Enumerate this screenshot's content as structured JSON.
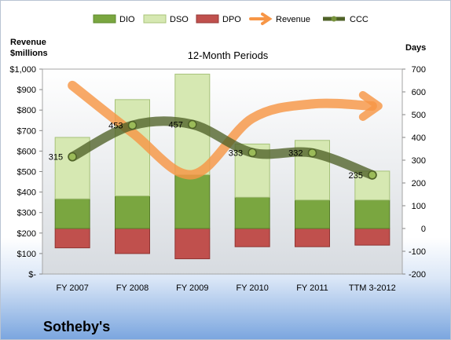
{
  "chart_data": {
    "type": "bar",
    "subtitle": "12-Month Periods",
    "company": "Sotheby's",
    "categories": [
      "FY 2007",
      "FY 2008",
      "FY 2009",
      "FY 2010",
      "FY 2011",
      "TTM 3-2012"
    ],
    "left_axis": {
      "label_line1": "Revenue",
      "label_line2": "$millions",
      "ylim": [
        0,
        1000
      ],
      "ticks": [
        "$-",
        "$100",
        "$200",
        "$300",
        "$400",
        "$500",
        "$600",
        "$700",
        "$800",
        "$900",
        "$1,000"
      ]
    },
    "right_axis": {
      "label": "Days",
      "ylim": [
        -200,
        700
      ],
      "ticks": [
        "-200",
        "-100",
        "0",
        "100",
        "200",
        "300",
        "400",
        "500",
        "600",
        "700"
      ]
    },
    "series": [
      {
        "name": "DIO",
        "color": "#7aa640",
        "values": [
          130,
          143,
          236,
          137,
          125,
          125
        ]
      },
      {
        "name": "DSO",
        "color": "#d6e8b2",
        "values": [
          270,
          423,
          442,
          234,
          262,
          127
        ]
      },
      {
        "name": "DPO",
        "color": "#c0504d",
        "values": [
          -85,
          -110,
          -133,
          -80,
          -80,
          -73
        ]
      },
      {
        "name": "Revenue",
        "color": "#f79646",
        "values": [
          920,
          690,
          485,
          760,
          830,
          820
        ]
      },
      {
        "name": "CCC",
        "color": "#4f6228",
        "values": [
          315,
          453,
          457,
          333,
          332,
          235
        ],
        "labels": [
          "315",
          "453",
          "457",
          "333",
          "332",
          "235"
        ]
      }
    ],
    "legend_position": "top",
    "grid": false
  }
}
